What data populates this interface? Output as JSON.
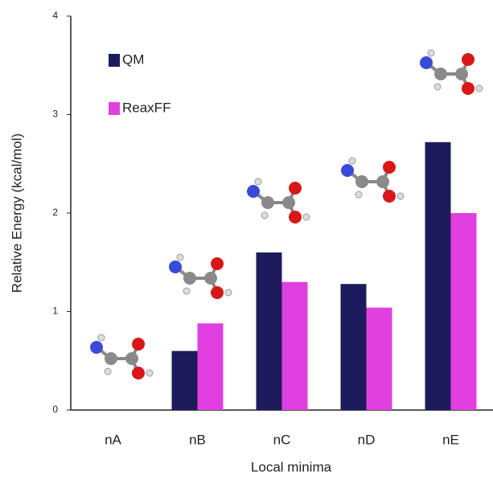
{
  "chart_data": {
    "type": "bar",
    "x_label": "Local minima",
    "y_label": "Relative  Energy (kcal/mol)",
    "categories": [
      "nA",
      "nB",
      "nC",
      "nD",
      "nE"
    ],
    "series": [
      {
        "name": "QM",
        "color": "#1c1c5c",
        "values": [
          0,
          0.6,
          1.6,
          1.28,
          2.72
        ]
      },
      {
        "name": "ReaxFF",
        "color": "#e040e0",
        "values": [
          0,
          0.88,
          1.3,
          1.04,
          2.0
        ]
      }
    ],
    "ylim": [
      0,
      4
    ],
    "yticks": [
      0,
      1,
      2,
      3,
      4
    ],
    "legend": "upper left"
  }
}
